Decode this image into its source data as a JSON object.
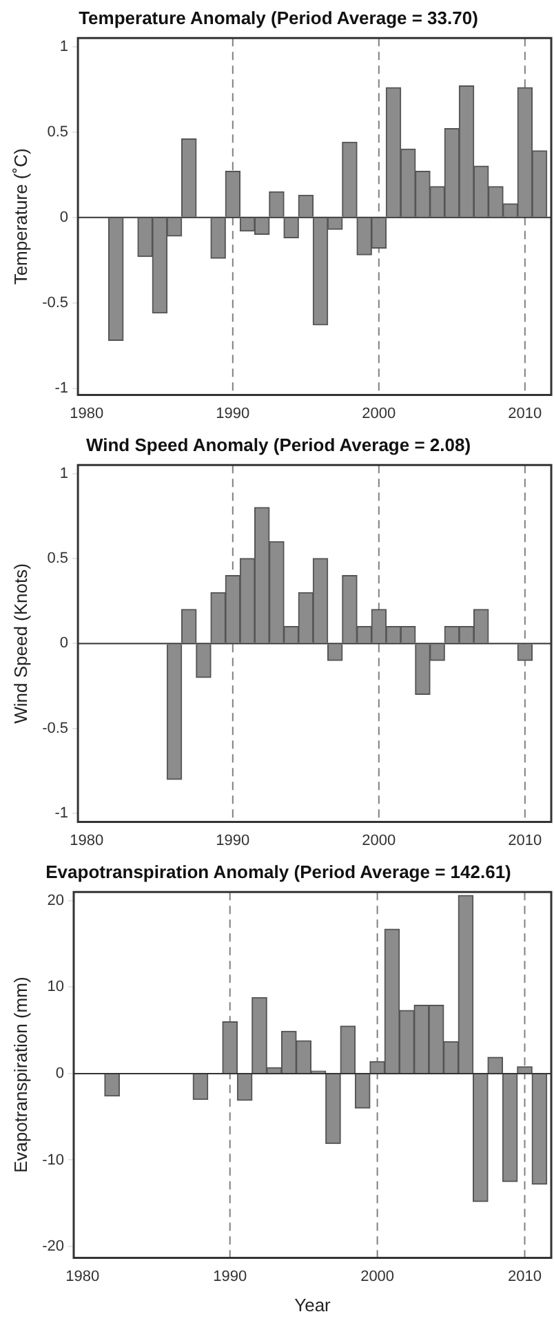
{
  "chart_data": [
    {
      "type": "bar",
      "title": "Temperature Anomaly (Period Average = 33.70)",
      "ylabel": "Temperature (˚C)",
      "x": [
        1982,
        1983,
        1984,
        1985,
        1986,
        1987,
        1988,
        1989,
        1990,
        1991,
        1992,
        1993,
        1994,
        1995,
        1996,
        1997,
        1998,
        1999,
        2000,
        2001,
        2002,
        2003,
        2004,
        2005,
        2006,
        2007,
        2008,
        2009,
        2010,
        2011
      ],
      "values": [
        -0.72,
        null,
        -0.23,
        -0.56,
        -0.11,
        0.46,
        null,
        -0.24,
        0.27,
        -0.08,
        -0.1,
        0.15,
        -0.12,
        0.13,
        -0.63,
        -0.07,
        0.44,
        -0.22,
        -0.18,
        0.76,
        0.4,
        0.27,
        0.18,
        0.52,
        0.77,
        0.3,
        0.18,
        0.08,
        0.76,
        0.39
      ],
      "color": "#8c8c8c",
      "xlim": [
        1979.4,
        2011.8
      ],
      "xticks": [
        1980,
        1990,
        2000,
        2010
      ],
      "ylim": [
        -1.04,
        1.05
      ],
      "yticks": [
        -1,
        -0.5,
        0,
        0.5,
        1
      ],
      "grid": false,
      "legend": false,
      "ref_lines": [
        {
          "axis": "x",
          "value": 1990,
          "line_style": "dashed",
          "color": "#808080"
        },
        {
          "axis": "x",
          "value": 2000,
          "line_style": "dashed",
          "color": "#808080"
        },
        {
          "axis": "x",
          "value": 2010,
          "line_style": "dashed",
          "color": "#808080"
        },
        {
          "axis": "y",
          "value": 0,
          "line_style": "solid",
          "color": "#333333"
        }
      ]
    },
    {
      "type": "bar",
      "title": "Wind Speed Anomaly (Period Average = 2.08)",
      "ylabel": "Wind Speed (Knots)",
      "x": [
        1986,
        1987,
        1988,
        1989,
        1990,
        1991,
        1992,
        1993,
        1994,
        1995,
        1996,
        1997,
        1998,
        1999,
        2000,
        2001,
        2002,
        2003,
        2004,
        2005,
        2006,
        2007,
        2008,
        2009,
        2010
      ],
      "values": [
        -0.8,
        0.2,
        -0.2,
        0.3,
        0.4,
        0.5,
        0.8,
        0.6,
        0.1,
        0.3,
        0.5,
        -0.1,
        0.4,
        0.1,
        0.2,
        0.1,
        0.1,
        -0.3,
        -0.1,
        0.1,
        0.1,
        0.2,
        null,
        null,
        -0.1
      ],
      "color": "#8c8c8c",
      "xlim": [
        1979.4,
        2011.8
      ],
      "xticks": [
        1980,
        1990,
        2000,
        2010
      ],
      "ylim": [
        -1.05,
        1.05
      ],
      "yticks": [
        -1,
        -0.5,
        0,
        0.5,
        1
      ],
      "grid": false,
      "legend": false,
      "ref_lines": [
        {
          "axis": "x",
          "value": 1990,
          "line_style": "dashed",
          "color": "#808080"
        },
        {
          "axis": "x",
          "value": 2000,
          "line_style": "dashed",
          "color": "#808080"
        },
        {
          "axis": "x",
          "value": 2010,
          "line_style": "dashed",
          "color": "#808080"
        },
        {
          "axis": "y",
          "value": 0,
          "line_style": "solid",
          "color": "#333333"
        }
      ]
    },
    {
      "type": "bar",
      "title": "Evapotranspiration Anomaly (Period Average = 142.61)",
      "ylabel": "Evapotranspiration (mm)",
      "xlabel": "Year",
      "x": [
        1982,
        1983,
        1984,
        1985,
        1986,
        1987,
        1988,
        1989,
        1990,
        1991,
        1992,
        1993,
        1994,
        1995,
        1996,
        1997,
        1998,
        1999,
        2000,
        2001,
        2002,
        2003,
        2004,
        2005,
        2006,
        2007,
        2008,
        2009,
        2010,
        2011
      ],
      "values": [
        -2.6,
        null,
        null,
        null,
        null,
        null,
        -3,
        null,
        6,
        -3.1,
        8.8,
        0.7,
        4.9,
        3.8,
        0.3,
        -8.1,
        5.5,
        -4,
        1.4,
        16.7,
        7.3,
        7.9,
        7.9,
        3.7,
        20.6,
        -14.8,
        1.9,
        -12.5,
        0.8,
        -12.8
      ],
      "color": "#8c8c8c",
      "xlim": [
        1979.4,
        2011.8
      ],
      "xticks": [
        1980,
        1990,
        2000,
        2010
      ],
      "ylim": [
        -21.3,
        21
      ],
      "yticks": [
        -20,
        -10,
        0,
        10,
        20
      ],
      "grid": false,
      "legend": false,
      "ref_lines": [
        {
          "axis": "x",
          "value": 1990,
          "line_style": "dashed",
          "color": "#808080"
        },
        {
          "axis": "x",
          "value": 2000,
          "line_style": "dashed",
          "color": "#808080"
        },
        {
          "axis": "x",
          "value": 2010,
          "line_style": "dashed",
          "color": "#808080"
        },
        {
          "axis": "y",
          "value": 0,
          "line_style": "solid",
          "color": "#333333"
        }
      ]
    }
  ]
}
